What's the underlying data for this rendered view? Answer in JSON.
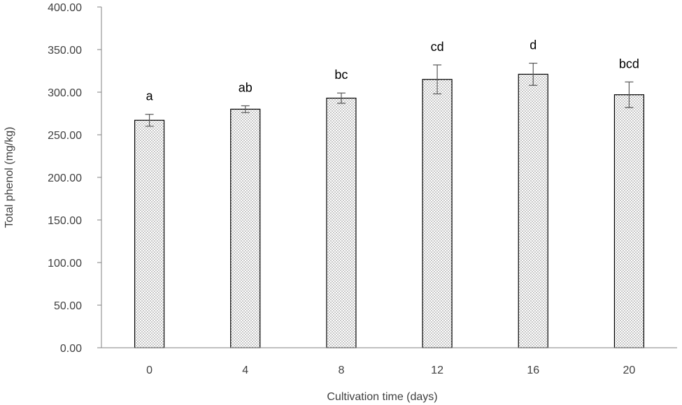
{
  "chart_data": {
    "type": "bar",
    "title": "",
    "xlabel": "Cultivation time (days)",
    "ylabel": "Total phenol (mg/kg)",
    "ylim": [
      0,
      400
    ],
    "yticks": [
      "0.00",
      "50.00",
      "100.00",
      "150.00",
      "200.00",
      "250.00",
      "300.00",
      "350.00",
      "400.00"
    ],
    "grid": false,
    "legend": "none",
    "categories": [
      "0",
      "4",
      "8",
      "12",
      "16",
      "20"
    ],
    "values": [
      267,
      280,
      293,
      315,
      321,
      297
    ],
    "errors": [
      7,
      4,
      6,
      17,
      13,
      15
    ],
    "significance_labels": [
      "a",
      "ab",
      "bc",
      "cd",
      "d",
      "bcd"
    ],
    "bar_fill": "dotted",
    "colors": {
      "bar_edge": "#000000",
      "dots": "#7a7a7a",
      "axis": "#808080",
      "text": "#404040"
    }
  }
}
